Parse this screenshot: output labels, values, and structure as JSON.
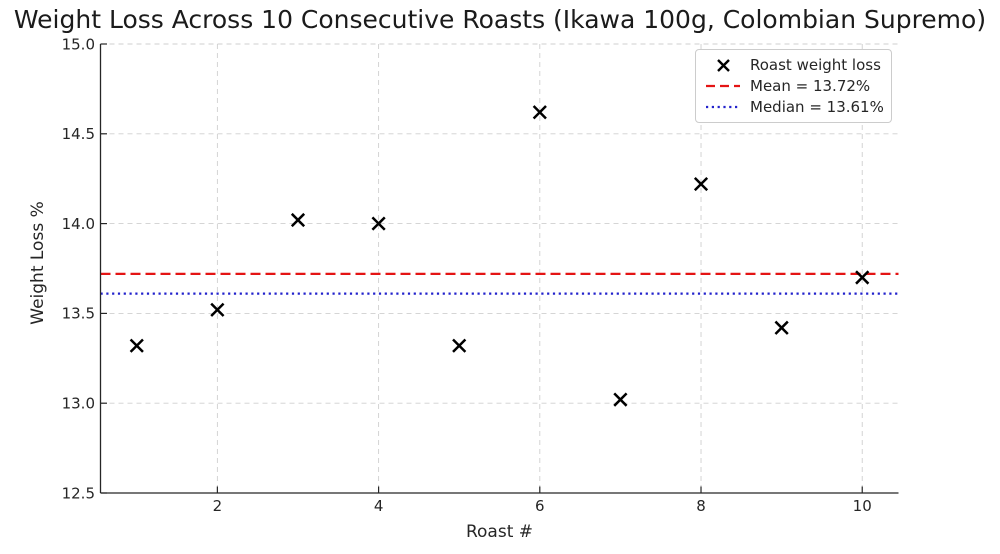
{
  "chart_data": {
    "type": "scatter",
    "title": "Weight Loss Across 10 Consecutive Roasts (Ikawa 100g, Colombian Supremo)",
    "xlabel": "Roast #",
    "ylabel": "Weight Loss %",
    "series": [
      {
        "name": "Roast weight loss",
        "marker": "x",
        "color": "#000000",
        "x": [
          1,
          2,
          3,
          4,
          5,
          6,
          7,
          8,
          9,
          10
        ],
        "y": [
          13.32,
          13.52,
          14.02,
          14.0,
          13.32,
          14.62,
          13.02,
          14.22,
          13.42,
          13.7
        ]
      }
    ],
    "ref_lines": [
      {
        "name": "Mean = 13.72%",
        "value": 13.72,
        "style": "dashed",
        "color": "#e41414"
      },
      {
        "name": "Median = 13.61%",
        "value": 13.61,
        "style": "dotted",
        "color": "#2222cc"
      }
    ],
    "xlim": [
      0.55,
      10.45
    ],
    "ylim": [
      12.5,
      15.0
    ],
    "xticks": {
      "values": [
        2,
        4,
        6,
        8,
        10
      ],
      "labels": [
        "2",
        "4",
        "6",
        "8",
        "10"
      ]
    },
    "yticks": {
      "values": [
        12.5,
        13.0,
        13.5,
        14.0,
        14.5,
        15.0
      ],
      "labels": [
        "12.5",
        "13.0",
        "13.5",
        "14.0",
        "14.5",
        "15.0"
      ]
    },
    "grid": true,
    "grid_color": "#cfcfcf",
    "spine_color": "#262626",
    "legend_position": "upper right"
  }
}
